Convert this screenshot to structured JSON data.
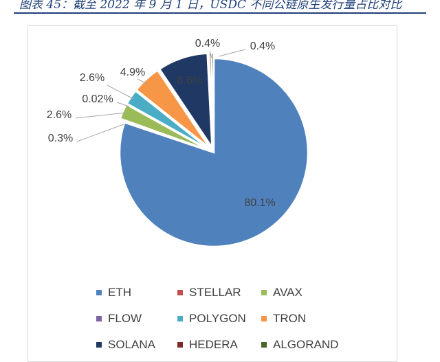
{
  "caption": "图表 45：截至 2022 年 9 月 1 日，USDC 不同公链原生发行量占比对比",
  "chart_data": {
    "type": "pie",
    "title": "",
    "categories": [
      "ETH",
      "STELLAR",
      "AVAX",
      "FLOW",
      "POLYGON",
      "TRON",
      "SOLANA",
      "HEDERA",
      "ALGORAND"
    ],
    "values": [
      80.1,
      0.3,
      2.6,
      0.02,
      2.6,
      4.9,
      8.6,
      0.4,
      0.4
    ],
    "value_labels": [
      "80.1%",
      "0.3%",
      "2.6%",
      "0.02%",
      "2.6%",
      "4.9%",
      "8.6%",
      "0.4%",
      "0.4%"
    ],
    "colors": [
      "#4f81bd",
      "#c0504d",
      "#9bbb59",
      "#8064a2",
      "#4bacc6",
      "#f79646",
      "#1f3864",
      "#7f2a26",
      "#4f6228"
    ],
    "legend_position": "bottom",
    "legend": [
      "ETH",
      "STELLAR",
      "AVAX",
      "FLOW",
      "POLYGON",
      "TRON",
      "SOLANA",
      "HEDERA",
      "ALGORAND"
    ]
  }
}
